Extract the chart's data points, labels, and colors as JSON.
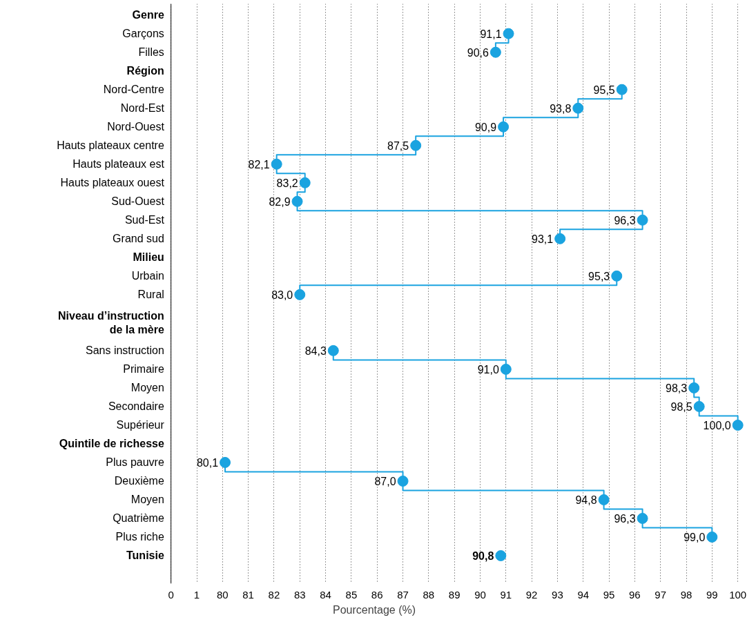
{
  "chart_data": {
    "type": "step",
    "orientation": "horizontal",
    "xlabel": "Pourcentage (%)",
    "categories": [
      "Genre",
      "Garçons",
      "Filles",
      "Région",
      "Nord-Centre",
      "Nord-Est",
      "Nord-Ouest",
      "Hauts plateaux centre",
      "Hauts plateaux est",
      "Hauts plateaux ouest",
      "Sud-Ouest",
      "Sud-Est",
      "Grand sud",
      "Milieu",
      "Urbain",
      "Rural",
      "Niveau d’instruction\nde la mère",
      "Sans instruction",
      "Primaire",
      "Moyen",
      "Secondaire",
      "Supérieur",
      "Quintile de richesse",
      "Plus pauvre",
      "Deuxième",
      "Moyen",
      "Quatrième",
      "Plus riche",
      "Tunisie"
    ],
    "series": [
      {
        "color": "#1aa3e0",
        "values": [
          null,
          91.1,
          90.6,
          null,
          95.5,
          93.8,
          90.9,
          87.5,
          82.1,
          83.2,
          82.9,
          96.3,
          93.1,
          null,
          95.3,
          83.0,
          null,
          84.3,
          91.0,
          98.3,
          98.5,
          100.0,
          null,
          80.1,
          87.0,
          94.8,
          96.3,
          99.0,
          null
        ],
        "value_labels": [
          null,
          "91,1",
          "90,6",
          null,
          "95,5",
          "93,8",
          "90,9",
          "87,5",
          "82,1",
          "83,2",
          "82,9",
          "96,3",
          "93,1",
          null,
          "95,3",
          "83,0",
          null,
          "84,3",
          "91,0",
          "98,3",
          "98,5",
          "100,0",
          null,
          "80,1",
          "87,0",
          "94,8",
          "96,3",
          "99,0",
          null
        ]
      },
      {
        "type": "scatter",
        "color": "#1aa3e0",
        "values": [
          null,
          null,
          null,
          null,
          null,
          null,
          null,
          null,
          null,
          null,
          null,
          null,
          null,
          null,
          null,
          null,
          null,
          null,
          null,
          null,
          null,
          null,
          null,
          null,
          null,
          null,
          null,
          null,
          90.8
        ],
        "value_labels": [
          null,
          null,
          null,
          null,
          null,
          null,
          null,
          null,
          null,
          null,
          null,
          null,
          null,
          null,
          null,
          null,
          null,
          null,
          null,
          null,
          null,
          null,
          null,
          null,
          null,
          null,
          null,
          null,
          "90,8"
        ]
      }
    ],
    "annotations": [
      "0",
      "1"
    ],
    "xlim": [
      80,
      100
    ],
    "xticks": [
      80,
      81,
      82,
      83,
      84,
      85,
      86,
      87,
      88,
      89,
      90,
      91,
      92,
      93,
      94,
      95,
      96,
      97,
      98,
      99,
      100
    ],
    "grid": "x",
    "marker": "circle",
    "line_style": "solid"
  }
}
